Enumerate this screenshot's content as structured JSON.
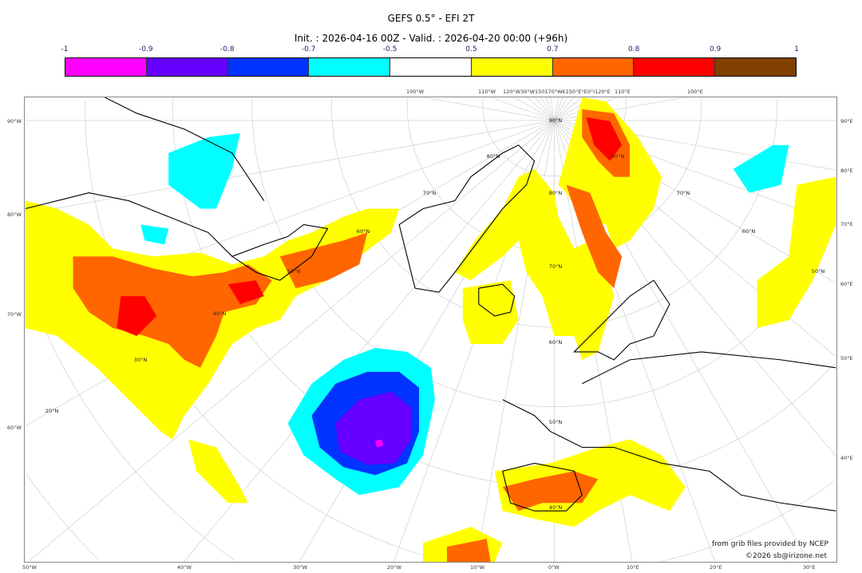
{
  "title": "GEFS 0.5° - EFI 2T",
  "subtitle": "Init. : 2026-04-16 00Z - Valid. : 2026-04-20 00:00 (+96h)",
  "legend": {
    "labels": [
      "-1",
      "-0.9",
      "-0.8",
      "-0.7",
      "-0.5",
      "0.5",
      "0.7",
      "0.8",
      "0.9",
      "1"
    ],
    "colors": [
      "#ff00ff",
      "#6600ff",
      "#0033ff",
      "#00ffff",
      "#ffffff",
      "#ffff00",
      "#ff6600",
      "#ff0000",
      "#804000"
    ]
  },
  "axes": {
    "left": [
      "90°W",
      "80°W",
      "70°W",
      "60°W"
    ],
    "right": [
      "90°E",
      "80°E",
      "70°E",
      "60°E",
      "50°E",
      "40°E"
    ],
    "bottom": [
      "50°W",
      "40°W",
      "30°W",
      "20°W",
      "10°W",
      "0°W",
      "10°E",
      "20°E",
      "30°E"
    ],
    "top": [
      "100°W",
      "110°W",
      "120°W30°W150170°W€150°E°E0°I120°E",
      "110°E",
      "100°E"
    ]
  },
  "graticule_labels": [
    "90°N",
    "80°N",
    "70°N",
    "60°N",
    "50°N",
    "40°N",
    "30°N",
    "20°N",
    "80°N",
    "70°N",
    "60°N",
    "50°N",
    "40°N",
    "40°N",
    "70°N",
    "60°N",
    "50°N"
  ],
  "credits": {
    "line1": "from grib files provided by NCEP",
    "line2": "©2026 sb@irizone.net"
  }
}
